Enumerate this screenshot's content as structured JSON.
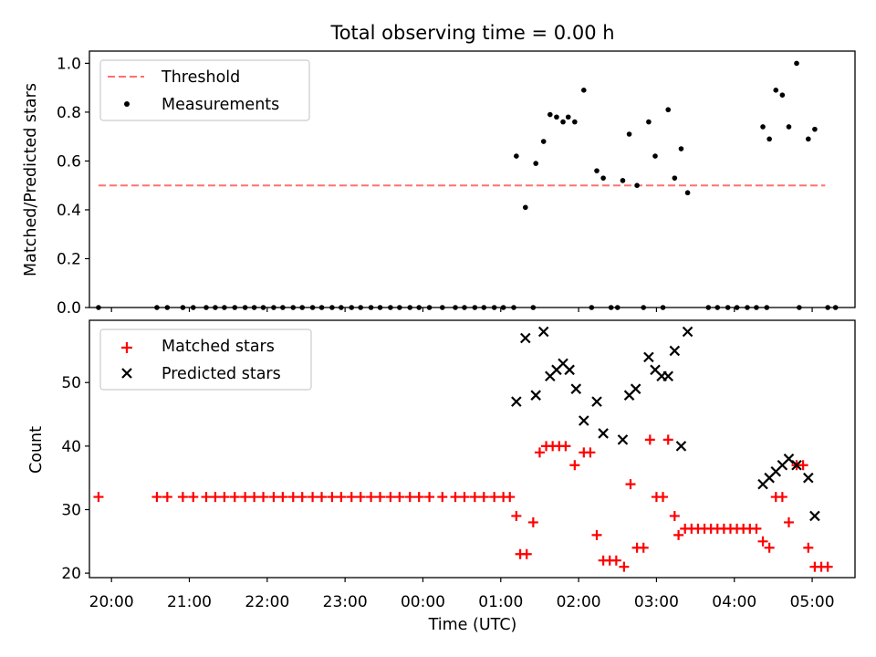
{
  "chart_data": [
    {
      "type": "scatter",
      "title": "Total observing time = 0.00 h",
      "xlabel": "",
      "ylabel": "Matched/Predicted stars",
      "xlim": [
        "19:43",
        "05:33"
      ],
      "ylim": [
        0,
        1.05
      ],
      "yticks": [
        "0.0",
        "0.2",
        "0.4",
        "0.6",
        "0.8",
        "1.0"
      ],
      "legend_position": "upper-left",
      "threshold": {
        "name": "Threshold",
        "value": 0.5,
        "x_range": [
          "19:50",
          "05:10"
        ],
        "color": "#ff7070",
        "style": "dashed"
      },
      "series": [
        {
          "name": "Measurements",
          "color": "#000000",
          "marker": "dot",
          "points": [
            [
              "19:50",
              0
            ],
            [
              "20:35",
              0
            ],
            [
              "20:43",
              0
            ],
            [
              "20:55",
              0
            ],
            [
              "21:03",
              0
            ],
            [
              "21:13",
              0
            ],
            [
              "21:20",
              0
            ],
            [
              "21:27",
              0
            ],
            [
              "21:35",
              0
            ],
            [
              "21:43",
              0
            ],
            [
              "21:50",
              0
            ],
            [
              "21:57",
              0
            ],
            [
              "22:05",
              0
            ],
            [
              "22:12",
              0
            ],
            [
              "22:20",
              0
            ],
            [
              "22:27",
              0
            ],
            [
              "22:35",
              0
            ],
            [
              "22:42",
              0
            ],
            [
              "22:50",
              0
            ],
            [
              "22:57",
              0
            ],
            [
              "23:05",
              0
            ],
            [
              "23:12",
              0
            ],
            [
              "23:20",
              0
            ],
            [
              "23:27",
              0
            ],
            [
              "23:35",
              0
            ],
            [
              "23:42",
              0
            ],
            [
              "23:50",
              0
            ],
            [
              "23:57",
              0
            ],
            [
              "00:05",
              0
            ],
            [
              "00:15",
              0
            ],
            [
              "00:25",
              0
            ],
            [
              "00:32",
              0
            ],
            [
              "00:40",
              0
            ],
            [
              "00:47",
              0
            ],
            [
              "00:55",
              0
            ],
            [
              "01:02",
              0
            ],
            [
              "01:10",
              0
            ],
            [
              "01:25",
              0
            ],
            [
              "02:10",
              0
            ],
            [
              "02:25",
              0
            ],
            [
              "02:30",
              0
            ],
            [
              "02:50",
              0
            ],
            [
              "03:05",
              0
            ],
            [
              "03:40",
              0
            ],
            [
              "03:47",
              0
            ],
            [
              "03:55",
              0
            ],
            [
              "04:02",
              0
            ],
            [
              "04:10",
              0
            ],
            [
              "04:17",
              0
            ],
            [
              "04:25",
              0
            ],
            [
              "04:50",
              0
            ],
            [
              "05:12",
              0
            ],
            [
              "05:18",
              0
            ],
            [
              "01:12",
              0.62
            ],
            [
              "01:19",
              0.41
            ],
            [
              "01:27",
              0.59
            ],
            [
              "01:33",
              0.68
            ],
            [
              "01:38",
              0.79
            ],
            [
              "01:43",
              0.78
            ],
            [
              "01:48",
              0.76
            ],
            [
              "01:52",
              0.78
            ],
            [
              "01:57",
              0.76
            ],
            [
              "02:04",
              0.89
            ],
            [
              "02:14",
              0.56
            ],
            [
              "02:19",
              0.53
            ],
            [
              "02:34",
              0.52
            ],
            [
              "02:39",
              0.71
            ],
            [
              "02:45",
              0.5
            ],
            [
              "02:54",
              0.76
            ],
            [
              "02:59",
              0.62
            ],
            [
              "03:09",
              0.81
            ],
            [
              "03:14",
              0.53
            ],
            [
              "03:19",
              0.65
            ],
            [
              "03:24",
              0.47
            ],
            [
              "04:22",
              0.74
            ],
            [
              "04:27",
              0.69
            ],
            [
              "04:32",
              0.89
            ],
            [
              "04:37",
              0.87
            ],
            [
              "04:42",
              0.74
            ],
            [
              "04:48",
              1.0
            ],
            [
              "04:57",
              0.69
            ],
            [
              "05:02",
              0.73
            ]
          ]
        }
      ]
    },
    {
      "type": "scatter",
      "title": "",
      "xlabel": "Time (UTC)",
      "ylabel": "Count",
      "xlim": [
        "19:43",
        "05:33"
      ],
      "ylim": [
        19.3,
        59.8
      ],
      "xticks": [
        "20:00",
        "21:00",
        "22:00",
        "23:00",
        "00:00",
        "01:00",
        "02:00",
        "03:00",
        "04:00",
        "05:00"
      ],
      "yticks": [
        "20",
        "30",
        "40",
        "50"
      ],
      "legend_position": "upper-left",
      "series": [
        {
          "name": "Matched stars",
          "color": "#ff0000",
          "marker": "plus",
          "points": [
            [
              "19:50",
              32
            ],
            [
              "20:35",
              32
            ],
            [
              "20:43",
              32
            ],
            [
              "20:55",
              32
            ],
            [
              "21:03",
              32
            ],
            [
              "21:13",
              32
            ],
            [
              "21:20",
              32
            ],
            [
              "21:27",
              32
            ],
            [
              "21:35",
              32
            ],
            [
              "21:43",
              32
            ],
            [
              "21:50",
              32
            ],
            [
              "21:57",
              32
            ],
            [
              "22:05",
              32
            ],
            [
              "22:12",
              32
            ],
            [
              "22:20",
              32
            ],
            [
              "22:27",
              32
            ],
            [
              "22:35",
              32
            ],
            [
              "22:42",
              32
            ],
            [
              "22:50",
              32
            ],
            [
              "22:57",
              32
            ],
            [
              "23:05",
              32
            ],
            [
              "23:12",
              32
            ],
            [
              "23:20",
              32
            ],
            [
              "23:27",
              32
            ],
            [
              "23:35",
              32
            ],
            [
              "23:42",
              32
            ],
            [
              "23:50",
              32
            ],
            [
              "23:57",
              32
            ],
            [
              "00:05",
              32
            ],
            [
              "00:15",
              32
            ],
            [
              "00:25",
              32
            ],
            [
              "00:32",
              32
            ],
            [
              "00:40",
              32
            ],
            [
              "00:47",
              32
            ],
            [
              "00:55",
              32
            ],
            [
              "01:02",
              32
            ],
            [
              "01:07",
              32
            ],
            [
              "01:12",
              29
            ],
            [
              "01:15",
              23
            ],
            [
              "01:20",
              23
            ],
            [
              "01:25",
              28
            ],
            [
              "01:30",
              39
            ],
            [
              "01:35",
              40
            ],
            [
              "01:40",
              40
            ],
            [
              "01:45",
              40
            ],
            [
              "01:50",
              40
            ],
            [
              "01:57",
              37
            ],
            [
              "02:04",
              39
            ],
            [
              "02:09",
              39
            ],
            [
              "02:14",
              26
            ],
            [
              "02:19",
              22
            ],
            [
              "02:24",
              22
            ],
            [
              "02:29",
              22
            ],
            [
              "02:35",
              21
            ],
            [
              "02:40",
              34
            ],
            [
              "02:45",
              24
            ],
            [
              "02:50",
              24
            ],
            [
              "02:55",
              41
            ],
            [
              "03:00",
              32
            ],
            [
              "03:05",
              32
            ],
            [
              "03:09",
              41
            ],
            [
              "03:14",
              29
            ],
            [
              "03:17",
              26
            ],
            [
              "03:22",
              27
            ],
            [
              "03:27",
              27
            ],
            [
              "03:32",
              27
            ],
            [
              "03:37",
              27
            ],
            [
              "03:42",
              27
            ],
            [
              "03:47",
              27
            ],
            [
              "03:52",
              27
            ],
            [
              "03:57",
              27
            ],
            [
              "04:02",
              27
            ],
            [
              "04:07",
              27
            ],
            [
              "04:12",
              27
            ],
            [
              "04:17",
              27
            ],
            [
              "04:22",
              25
            ],
            [
              "04:27",
              24
            ],
            [
              "04:32",
              32
            ],
            [
              "04:37",
              32
            ],
            [
              "04:42",
              28
            ],
            [
              "04:48",
              37
            ],
            [
              "04:53",
              37
            ],
            [
              "04:57",
              24
            ],
            [
              "05:02",
              21
            ],
            [
              "05:07",
              21
            ],
            [
              "05:12",
              21
            ]
          ]
        },
        {
          "name": "Predicted stars",
          "color": "#000000",
          "marker": "x",
          "points": [
            [
              "01:12",
              47
            ],
            [
              "01:19",
              57
            ],
            [
              "01:27",
              48
            ],
            [
              "01:33",
              58
            ],
            [
              "01:38",
              51
            ],
            [
              "01:43",
              52
            ],
            [
              "01:48",
              53
            ],
            [
              "01:53",
              52
            ],
            [
              "01:58",
              49
            ],
            [
              "02:04",
              44
            ],
            [
              "02:14",
              47
            ],
            [
              "02:19",
              42
            ],
            [
              "02:34",
              41
            ],
            [
              "02:39",
              48
            ],
            [
              "02:44",
              49
            ],
            [
              "02:54",
              54
            ],
            [
              "02:59",
              52
            ],
            [
              "03:04",
              51
            ],
            [
              "03:09",
              51
            ],
            [
              "03:14",
              55
            ],
            [
              "03:19",
              40
            ],
            [
              "03:24",
              58
            ],
            [
              "04:22",
              34
            ],
            [
              "04:27",
              35
            ],
            [
              "04:32",
              36
            ],
            [
              "04:37",
              37
            ],
            [
              "04:42",
              38
            ],
            [
              "04:48",
              37
            ],
            [
              "04:57",
              35
            ],
            [
              "05:02",
              29
            ]
          ]
        }
      ]
    }
  ]
}
